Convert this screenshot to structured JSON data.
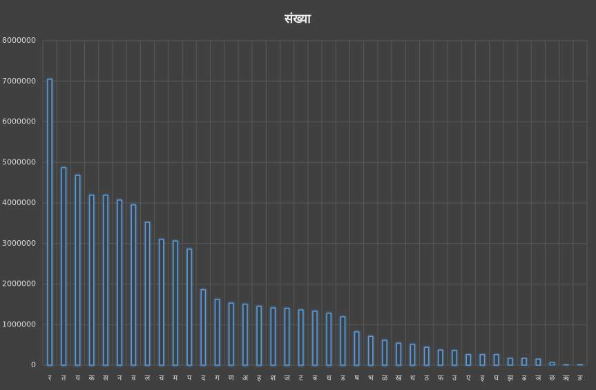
{
  "chart_data": {
    "type": "bar",
    "title": "संख्या",
    "categories": [
      "र",
      "त",
      "य",
      "क",
      "स",
      "न",
      "व",
      "ल",
      "च",
      "म",
      "प",
      "द",
      "ग",
      "ण",
      "अ",
      "ह",
      "श",
      "ज",
      "ट",
      "ब",
      "ध",
      "ड",
      "ष",
      "भ",
      "ळ",
      "ख",
      "थ",
      "ठ",
      "फ",
      "उ",
      "ए",
      "इ",
      "घ",
      "झ",
      "ढ",
      "ञ",
      "छ",
      "ऋ",
      "ङ"
    ],
    "values": [
      7050000,
      4870000,
      4680000,
      4190000,
      4190000,
      4070000,
      3950000,
      3520000,
      3100000,
      3060000,
      2860000,
      1860000,
      1620000,
      1530000,
      1500000,
      1450000,
      1410000,
      1400000,
      1360000,
      1330000,
      1280000,
      1190000,
      820000,
      710000,
      610000,
      540000,
      510000,
      440000,
      370000,
      360000,
      260000,
      260000,
      260000,
      170000,
      170000,
      150000,
      70000,
      20000,
      20000
    ],
    "color": "#5b9bd5",
    "ylim": [
      0,
      8000000
    ],
    "yticks": [
      0,
      1000000,
      2000000,
      3000000,
      4000000,
      5000000,
      6000000,
      7000000,
      8000000
    ],
    "grid": true
  }
}
